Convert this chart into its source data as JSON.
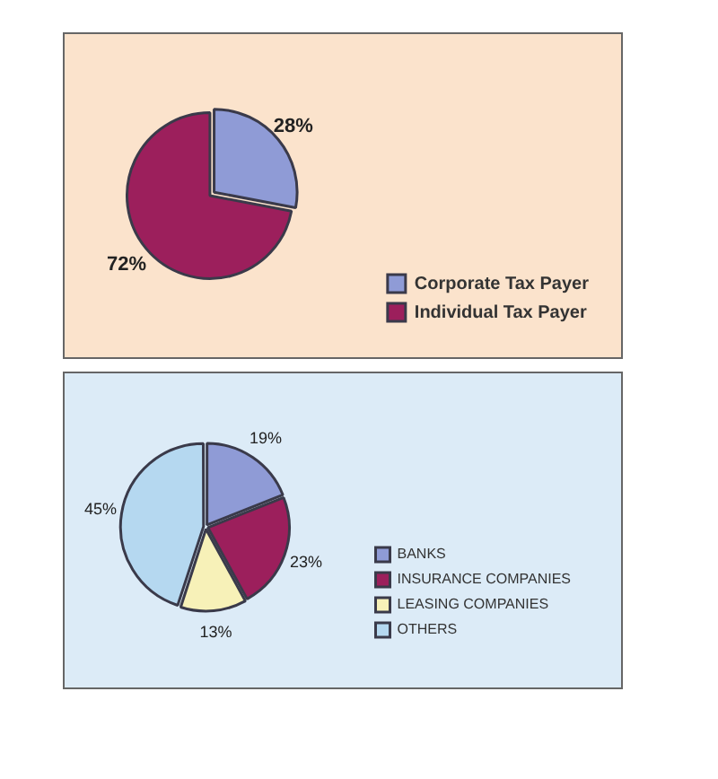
{
  "chart_data": [
    {
      "type": "pie",
      "categories": [
        "Corporate Tax Payer",
        "Individual Tax Payer"
      ],
      "values": [
        28,
        72
      ],
      "colors": [
        "#8f9bd6",
        "#9c1f5c"
      ],
      "value_labels": [
        "28%",
        "72%"
      ],
      "legend": "bottom right"
    },
    {
      "type": "pie",
      "categories": [
        "BANKS",
        "INSURANCE COMPANIES",
        "LEASING COMPANIES",
        "OTHERS"
      ],
      "values": [
        19,
        23,
        13,
        45
      ],
      "colors": [
        "#8f9bd6",
        "#9c1f5c",
        "#f7f1b8",
        "#b5d8f0"
      ],
      "value_labels": [
        "19%",
        "23%",
        "13%",
        "45%"
      ],
      "legend": "bottom right"
    }
  ]
}
